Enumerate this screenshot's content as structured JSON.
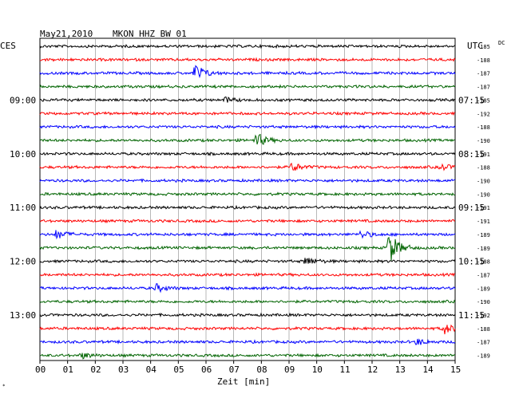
{
  "header": {
    "date": "May21,2010",
    "station": "MKON HHZ BW 01",
    "left_tz": "CES",
    "right_tz": "UTC",
    "dc_label": "DC"
  },
  "colors": {
    "cycle": [
      "#000000",
      "#ff0000",
      "#0000ff",
      "#006400"
    ],
    "grid": "#000000",
    "background": "#ffffff"
  },
  "x_axis": {
    "label": "Zeit [min]",
    "ticks": [
      "00",
      "01",
      "02",
      "03",
      "04",
      "05",
      "06",
      "07",
      "08",
      "09",
      "10",
      "11",
      "12",
      "13",
      "14",
      "15"
    ]
  },
  "traces": {
    "dc_values": [
      "-185",
      "-188",
      "-187",
      "-187",
      "-185",
      "-192",
      "-188",
      "-190",
      "-191",
      "-188",
      "-190",
      "-190",
      "-191",
      "-191",
      "-189",
      "-189",
      "-188",
      "-187",
      "-189",
      "-190",
      "-192",
      "-188",
      "-187",
      "-189"
    ],
    "left_time_labels": [
      "",
      "",
      "",
      "",
      "09:00",
      "",
      "",
      "",
      "10:00",
      "",
      "",
      "",
      "11:00",
      "",
      "",
      "",
      "12:00",
      "",
      "",
      "",
      "13:00",
      "",
      "",
      ""
    ],
    "right_time_labels": [
      "",
      "",
      "",
      "",
      "07:15",
      "",
      "",
      "",
      "08:15",
      "",
      "",
      "",
      "09:15",
      "",
      "",
      "",
      "10:15",
      "",
      "",
      "",
      "11:15",
      "",
      "",
      ""
    ],
    "events": [
      {
        "trace": 2,
        "minute": 5.6,
        "amp": 12
      },
      {
        "trace": 4,
        "minute": 6.7,
        "amp": 3
      },
      {
        "trace": 7,
        "minute": 7.8,
        "amp": 10
      },
      {
        "trace": 9,
        "minute": 9.1,
        "amp": 6
      },
      {
        "trace": 9,
        "minute": 14.5,
        "amp": 4
      },
      {
        "trace": 14,
        "minute": 0.6,
        "amp": 6
      },
      {
        "trace": 14,
        "minute": 11.6,
        "amp": 5
      },
      {
        "trace": 15,
        "minute": 12.6,
        "amp": 22
      },
      {
        "trace": 16,
        "minute": 9.6,
        "amp": 6
      },
      {
        "trace": 18,
        "minute": 4.2,
        "amp": 5
      },
      {
        "trace": 21,
        "minute": 14.6,
        "amp": 7
      },
      {
        "trace": 22,
        "minute": 13.6,
        "amp": 4
      },
      {
        "trace": 23,
        "minute": 1.5,
        "amp": 4
      }
    ]
  }
}
